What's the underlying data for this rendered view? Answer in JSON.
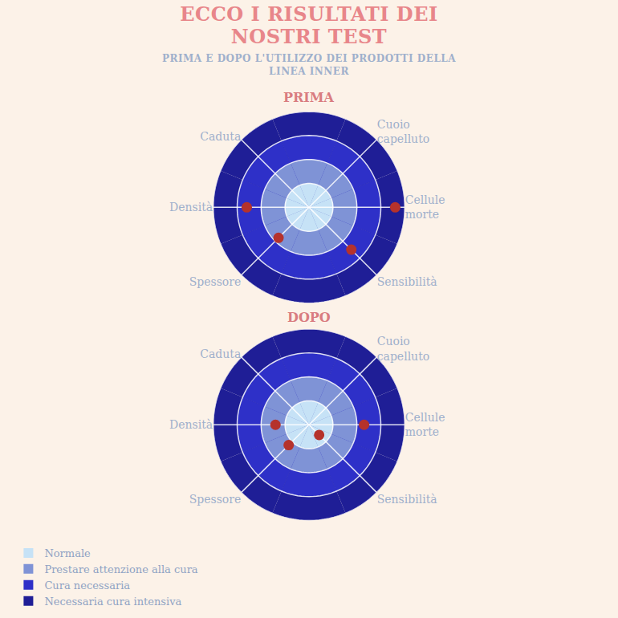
{
  "header": {
    "title": "ECCO I RISULTATI DEI NOSTRI TEST",
    "subtitle": "PRIMA E DOPO L'UTILIZZO DEI PRODOTTI DELLA LINEA INNER"
  },
  "key": [
    {
      "label": "Normale",
      "color": "#c6e2f6"
    },
    {
      "label": "Prestare attenzione alla cura",
      "color": "#7f93d6"
    },
    {
      "label": "Cura necessaria",
      "color": "#2e30c8"
    },
    {
      "label": "Necessaria cura intensiva",
      "color": "#1f1e96"
    }
  ],
  "chart_data": [
    {
      "type": "polar",
      "title": "PRIMA",
      "categories": [
        "Cellule morte",
        "Sensibilità",
        null,
        "Spessore",
        "Densità",
        "Caduta",
        null,
        "Cuoio capelluto"
      ],
      "values": [
        3.6,
        2.5,
        null,
        1.8,
        2.6,
        null,
        null,
        null
      ],
      "color": "#b5322c",
      "marker": "circle",
      "ylim": [
        0,
        4
      ],
      "yticks": [
        0,
        1,
        2,
        3,
        4
      ],
      "tick_labels": "x",
      "grid": true
    },
    {
      "type": "polar",
      "title": "DOPO",
      "categories": [
        "Cellule morte",
        "Sensibilità",
        null,
        "Spessore",
        "Densità",
        "Caduta",
        null,
        "Cuoio capelluto"
      ],
      "values": [
        2.3,
        0.6,
        null,
        1.2,
        1.4,
        null,
        null,
        null
      ],
      "color": "#b5322c",
      "marker": "circle",
      "ylim": [
        0,
        4
      ],
      "yticks": [
        0,
        1,
        2,
        3,
        4
      ],
      "tick_labels": "x",
      "grid": true
    }
  ]
}
